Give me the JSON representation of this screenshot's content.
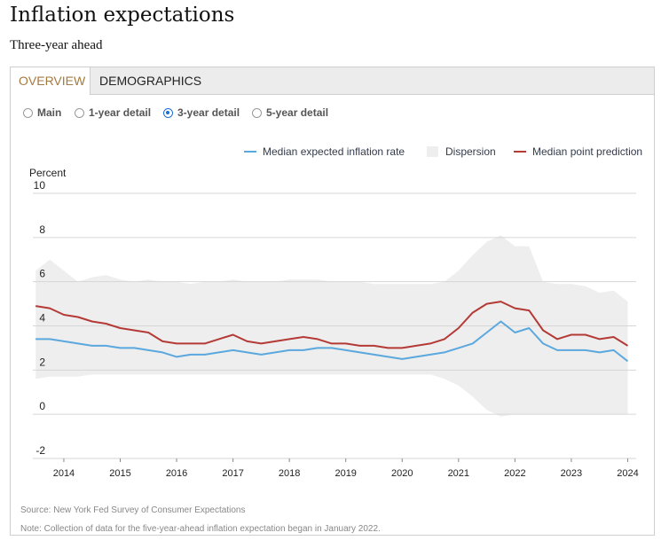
{
  "header": {
    "title": "Inflation expectations",
    "subtitle": "Three-year ahead"
  },
  "tabs": [
    {
      "label": "OVERVIEW",
      "active": true
    },
    {
      "label": "DEMOGRAPHICS",
      "active": false
    }
  ],
  "radios": [
    {
      "label": "Main",
      "selected": false
    },
    {
      "label": "1-year detail",
      "selected": false
    },
    {
      "label": "3-year detail",
      "selected": true
    },
    {
      "label": "5-year detail",
      "selected": false
    }
  ],
  "legend": [
    {
      "label": "Median expected inflation rate",
      "color": "#5ba8de",
      "kind": "line"
    },
    {
      "label": "Dispersion",
      "color": "#eeeeee",
      "kind": "box"
    },
    {
      "label": "Median point prediction",
      "color": "#b43a36",
      "kind": "line"
    }
  ],
  "footer": {
    "source": "Source: New York Fed Survey of Consumer Expectations",
    "note": "Note: Collection of data for the five-year-ahead inflation expectation began in January 2022."
  },
  "colors": {
    "tab_active": "#a57a3e",
    "radio_selected": "#1f6fd1",
    "median_expected": "#5ba8de",
    "median_point": "#b43a36",
    "dispersion": "#eeeeee",
    "gridline": "#d6d6d6"
  },
  "chart_data": {
    "type": "line",
    "title": "",
    "ylabel": "Percent",
    "xlabel": "",
    "ylim": [
      -2,
      10
    ],
    "yticks": [
      -2,
      0,
      2,
      4,
      6,
      8,
      10
    ],
    "xlim": [
      2013.45,
      2024.15
    ],
    "xticks": [
      "2014",
      "2015",
      "2016",
      "2017",
      "2018",
      "2019",
      "2020",
      "2021",
      "2022",
      "2023",
      "2024"
    ],
    "grid": "horizontal",
    "legend_position": "top-right",
    "x": [
      2013.5,
      2013.75,
      2014.0,
      2014.25,
      2014.5,
      2014.75,
      2015.0,
      2015.25,
      2015.5,
      2015.75,
      2016.0,
      2016.25,
      2016.5,
      2016.75,
      2017.0,
      2017.25,
      2017.5,
      2017.75,
      2018.0,
      2018.25,
      2018.5,
      2018.75,
      2019.0,
      2019.25,
      2019.5,
      2019.75,
      2020.0,
      2020.25,
      2020.5,
      2020.75,
      2021.0,
      2021.25,
      2021.5,
      2021.75,
      2022.0,
      2022.25,
      2022.5,
      2022.75,
      2023.0,
      2023.25,
      2023.5,
      2023.75,
      2024.0
    ],
    "series": [
      {
        "name": "Median expected inflation rate",
        "values": [
          3.4,
          3.4,
          3.3,
          3.2,
          3.1,
          3.1,
          3.0,
          3.0,
          2.9,
          2.8,
          2.6,
          2.7,
          2.7,
          2.8,
          2.9,
          2.8,
          2.7,
          2.8,
          2.9,
          2.9,
          3.0,
          3.0,
          2.9,
          2.8,
          2.7,
          2.6,
          2.5,
          2.6,
          2.7,
          2.8,
          3.0,
          3.2,
          3.7,
          4.2,
          3.7,
          3.9,
          3.2,
          2.9,
          2.9,
          2.9,
          2.8,
          2.9,
          2.4
        ]
      },
      {
        "name": "Median point prediction",
        "values": [
          4.9,
          4.8,
          4.5,
          4.4,
          4.2,
          4.1,
          3.9,
          3.8,
          3.7,
          3.3,
          3.2,
          3.2,
          3.2,
          3.4,
          3.6,
          3.3,
          3.2,
          3.3,
          3.4,
          3.5,
          3.4,
          3.2,
          3.2,
          3.1,
          3.1,
          3.0,
          3.0,
          3.1,
          3.2,
          3.4,
          3.9,
          4.6,
          5.0,
          5.1,
          4.8,
          4.7,
          3.8,
          3.4,
          3.6,
          3.6,
          3.4,
          3.5,
          3.1
        ]
      },
      {
        "name": "Dispersion",
        "low": [
          1.6,
          1.7,
          1.7,
          1.7,
          1.8,
          1.8,
          1.8,
          1.8,
          1.8,
          1.8,
          1.8,
          1.8,
          1.8,
          1.8,
          1.8,
          1.8,
          1.8,
          1.8,
          1.8,
          1.8,
          1.8,
          1.8,
          1.8,
          1.8,
          1.8,
          1.8,
          1.8,
          1.8,
          1.8,
          1.6,
          1.3,
          0.8,
          0.2,
          -0.1,
          0.0,
          0.0,
          0.0,
          0.0,
          0.0,
          0.0,
          0.0,
          0.0,
          0.0
        ],
        "high": [
          6.5,
          7.0,
          6.5,
          6.0,
          6.2,
          6.3,
          6.1,
          6.0,
          6.1,
          6.0,
          6.0,
          5.9,
          6.0,
          6.0,
          6.1,
          6.0,
          6.0,
          6.0,
          6.1,
          6.1,
          6.1,
          6.0,
          6.0,
          6.0,
          5.9,
          5.9,
          5.9,
          5.9,
          5.9,
          6.0,
          6.5,
          7.2,
          7.8,
          8.1,
          7.6,
          7.6,
          6.0,
          5.9,
          5.9,
          5.8,
          5.5,
          5.6,
          5.1
        ]
      }
    ]
  }
}
